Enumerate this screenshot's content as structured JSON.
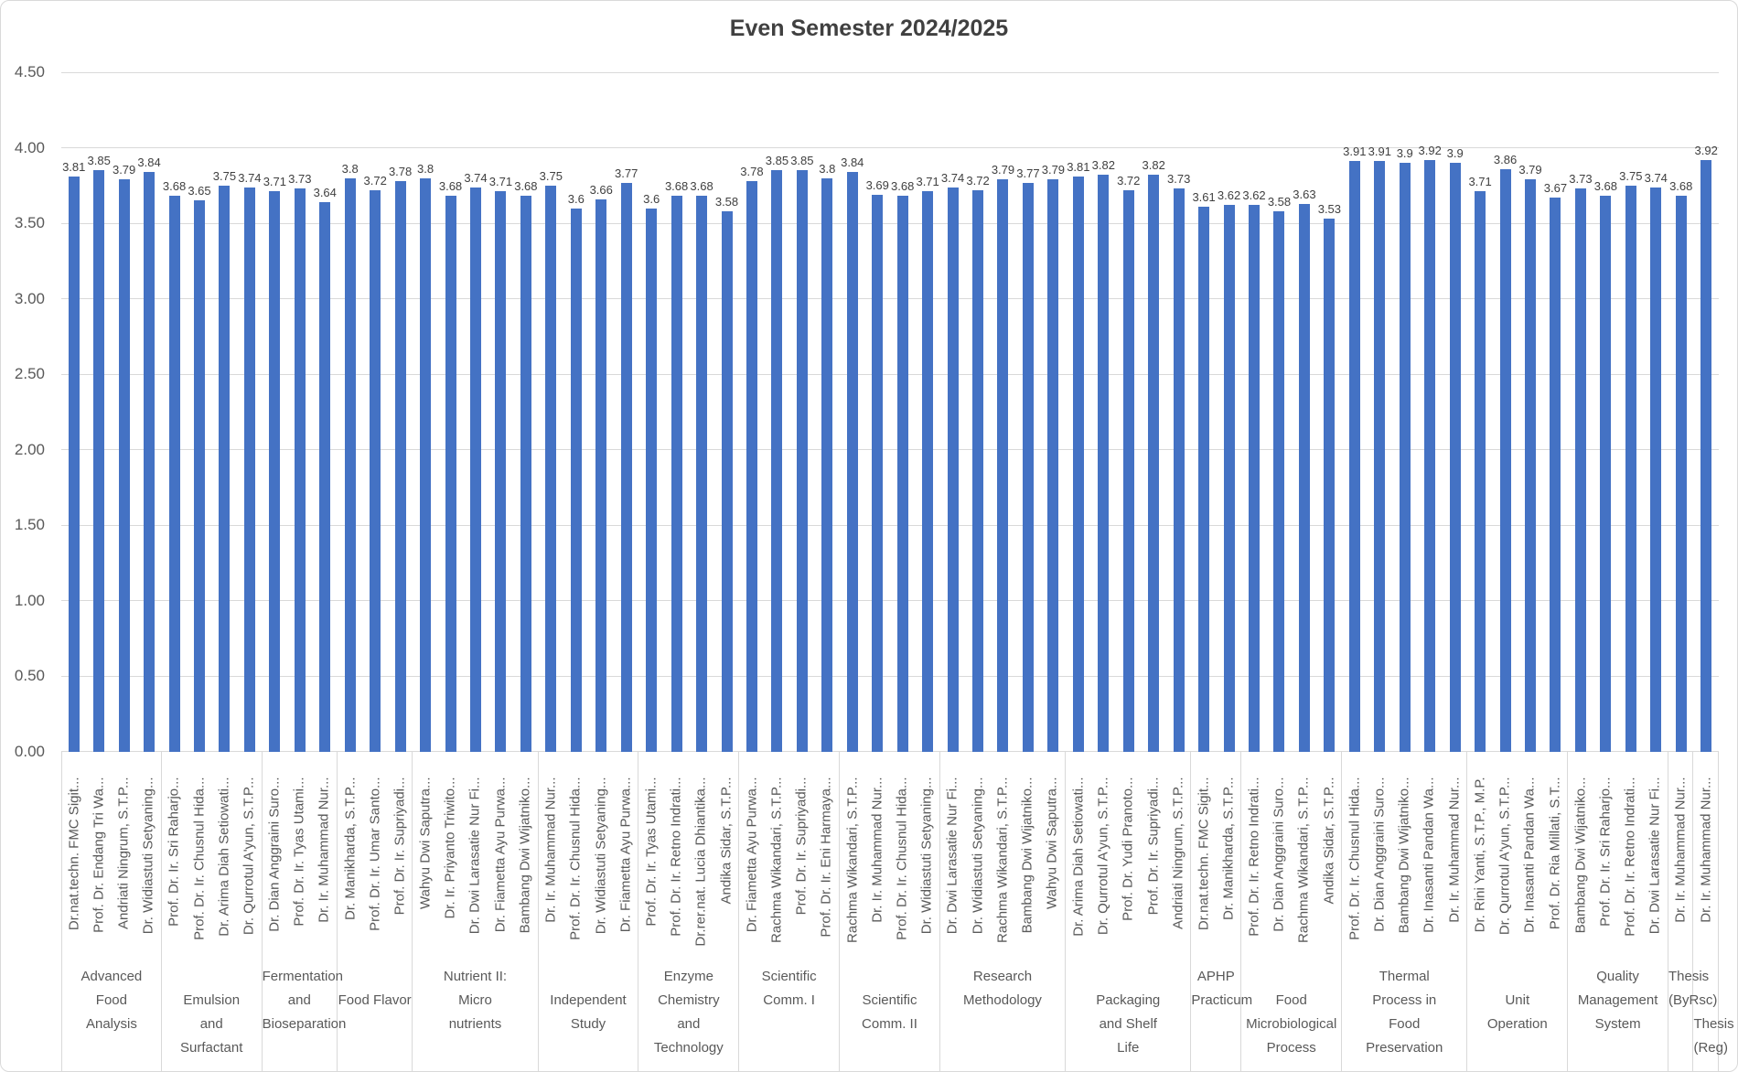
{
  "chart_data": {
    "type": "bar",
    "title": "Even Semester 2024/2025",
    "bar_color": "#4472C4",
    "grid_color": "#D9D9D9",
    "axis_text_color": "#595959",
    "value_label_color": "#404040",
    "ylim": [
      0,
      4.5
    ],
    "ytick_step": 0.5,
    "yticks": [
      "4.50",
      "4.00",
      "3.50",
      "3.00",
      "2.50",
      "2.00",
      "1.50",
      "1.00",
      "0.50",
      "0.00"
    ],
    "legend": "none",
    "grid": "horizontal",
    "xlabel": "",
    "ylabel": "",
    "groups": [
      {
        "course": "Advanced Food Analysis",
        "course_lines": [
          "Advanced",
          "Food",
          "Analysis"
        ],
        "row": 1,
        "bars": [
          {
            "lecturer": "Dr.nat.techn. FMC Sigit...",
            "value": 3.81,
            "label": "3.81"
          },
          {
            "lecturer": "Prof. Dr. Endang Tri Wa...",
            "value": 3.85,
            "label": "3.85"
          },
          {
            "lecturer": "Andriati Ningrum, S.T.P...",
            "value": 3.79,
            "label": "3.79"
          },
          {
            "lecturer": "Dr. Widiastuti Setyaning...",
            "value": 3.84,
            "label": "3.84"
          }
        ]
      },
      {
        "course": "Emulsion and Surfactant",
        "course_lines": [
          "Emulsion",
          "and",
          "Surfactant"
        ],
        "row": 2,
        "bars": [
          {
            "lecturer": "Prof. Dr. Ir. Sri Raharjo...",
            "value": 3.68,
            "label": "3.68"
          },
          {
            "lecturer": "Prof. Dr. Ir. Chusnul Hida...",
            "value": 3.65,
            "label": "3.65"
          },
          {
            "lecturer": "Dr. Arima Diah Setiowati...",
            "value": 3.75,
            "label": "3.75"
          },
          {
            "lecturer": "Dr. Qurrotul A'yun, S.T.P...",
            "value": 3.74,
            "label": "3.74"
          }
        ]
      },
      {
        "course": "Fermentation and Bioseparation",
        "course_lines": [
          "Fermentation",
          "and",
          "Bioseparation"
        ],
        "row": 1,
        "bars": [
          {
            "lecturer": "Dr. Dian Anggraini Suro...",
            "value": 3.71,
            "label": "3.71"
          },
          {
            "lecturer": "Prof. Dr. Ir. Tyas Utami...",
            "value": 3.73,
            "label": "3.73"
          },
          {
            "lecturer": "Dr. Ir. Muhammad Nur...",
            "value": 3.64,
            "label": "3.64"
          }
        ]
      },
      {
        "course": "Food Flavor",
        "course_lines": [
          "Food Flavor"
        ],
        "row": 2,
        "bars": [
          {
            "lecturer": "Dr. Manikharda, S.T.P...",
            "value": 3.8,
            "label": "3.8"
          },
          {
            "lecturer": "Prof. Dr. Ir. Umar Santo...",
            "value": 3.72,
            "label": "3.72"
          },
          {
            "lecturer": "Prof. Dr. Ir. Supriyadi...",
            "value": 3.78,
            "label": "3.78"
          }
        ]
      },
      {
        "course": "Nutrient II: Micro nutrients",
        "course_lines": [
          "Nutrient II:",
          "Micro",
          "nutrients"
        ],
        "row": 1,
        "bars": [
          {
            "lecturer": "Wahyu Dwi Saputra...",
            "value": 3.8,
            "label": "3.8"
          },
          {
            "lecturer": "Dr. Ir. Priyanto Triwito...",
            "value": 3.68,
            "label": "3.68"
          },
          {
            "lecturer": "Dr. Dwi Larasatie Nur Fi...",
            "value": 3.74,
            "label": "3.74"
          },
          {
            "lecturer": "Dr. Fiametta Ayu Purwa...",
            "value": 3.71,
            "label": "3.71"
          },
          {
            "lecturer": "Bambang Dwi Wijatniko...",
            "value": 3.68,
            "label": "3.68"
          }
        ]
      },
      {
        "course": "Independent Study",
        "course_lines": [
          "Independent",
          "Study"
        ],
        "row": 2,
        "bars": [
          {
            "lecturer": "Dr. Ir. Muhammad Nur...",
            "value": 3.75,
            "label": "3.75"
          },
          {
            "lecturer": "Prof. Dr. Ir. Chusnul Hida...",
            "value": 3.6,
            "label": "3.6"
          },
          {
            "lecturer": "Dr. Widiastuti Setyaning...",
            "value": 3.66,
            "label": "3.66"
          },
          {
            "lecturer": "Dr. Fiametta Ayu Purwa...",
            "value": 3.77,
            "label": "3.77"
          }
        ]
      },
      {
        "course": "Enzyme Chemistry and Technology",
        "course_lines": [
          "Enzyme",
          "Chemistry",
          "and",
          "Technology"
        ],
        "row": 1,
        "bars": [
          {
            "lecturer": "Prof. Dr. Ir. Tyas Utami...",
            "value": 3.6,
            "label": "3.6"
          },
          {
            "lecturer": "Prof. Dr. Ir. Retno Indrati...",
            "value": 3.68,
            "label": "3.68"
          },
          {
            "lecturer": "Dr.rer.nat. Lucia Dhiantika...",
            "value": 3.68,
            "label": "3.68"
          },
          {
            "lecturer": "Andika Sidar, S.T.P...",
            "value": 3.58,
            "label": "3.58"
          }
        ]
      },
      {
        "course": "Scientific Comm. I",
        "course_lines": [
          "Scientific",
          "Comm. I"
        ],
        "row": 1,
        "bars": [
          {
            "lecturer": "Dr. Fiametta Ayu Purwa...",
            "value": 3.78,
            "label": "3.78"
          },
          {
            "lecturer": "Rachma Wikandari, S.T.P...",
            "value": 3.85,
            "label": "3.85"
          },
          {
            "lecturer": "Prof. Dr. Ir. Supriyadi...",
            "value": 3.85,
            "label": "3.85"
          },
          {
            "lecturer": "Prof. Dr. Ir. Eni Harmaya...",
            "value": 3.8,
            "label": "3.8"
          }
        ]
      },
      {
        "course": "Scientific Comm. II",
        "course_lines": [
          "Scientific",
          "Comm. II"
        ],
        "row": 2,
        "bars": [
          {
            "lecturer": "Rachma Wikandari, S.T.P...",
            "value": 3.84,
            "label": "3.84"
          },
          {
            "lecturer": "Dr. Ir. Muhammad Nur...",
            "value": 3.69,
            "label": "3.69"
          },
          {
            "lecturer": "Prof. Dr. Ir. Chusnul Hida...",
            "value": 3.68,
            "label": "3.68"
          },
          {
            "lecturer": "Dr. Widiastuti Setyaning...",
            "value": 3.71,
            "label": "3.71"
          }
        ]
      },
      {
        "course": "Research Methodology",
        "course_lines": [
          "Research",
          "Methodology"
        ],
        "row": 1,
        "bars": [
          {
            "lecturer": "Dr. Dwi Larasatie Nur Fi...",
            "value": 3.74,
            "label": "3.74"
          },
          {
            "lecturer": "Dr. Widiastuti Setyaning...",
            "value": 3.72,
            "label": "3.72"
          },
          {
            "lecturer": "Rachma Wikandari, S.T.P...",
            "value": 3.79,
            "label": "3.79"
          },
          {
            "lecturer": "Bambang Dwi Wijatniko...",
            "value": 3.77,
            "label": "3.77"
          },
          {
            "lecturer": "Wahyu Dwi Saputra...",
            "value": 3.79,
            "label": "3.79"
          }
        ]
      },
      {
        "course": "Packaging and Shelf Life",
        "course_lines": [
          "Packaging",
          "and Shelf",
          "Life"
        ],
        "row": 2,
        "bars": [
          {
            "lecturer": "Dr. Arima Diah Setiowati...",
            "value": 3.81,
            "label": "3.81"
          },
          {
            "lecturer": "Dr. Qurrotul A'yun, S.T.P...",
            "value": 3.82,
            "label": "3.82"
          },
          {
            "lecturer": "Prof. Dr. Yudi Pranoto...",
            "value": 3.72,
            "label": "3.72"
          },
          {
            "lecturer": "Prof. Dr. Ir. Supriyadi...",
            "value": 3.82,
            "label": "3.82"
          },
          {
            "lecturer": "Andriati Ningrum, S.T.P...",
            "value": 3.73,
            "label": "3.73"
          }
        ]
      },
      {
        "course": "APHP Practicum",
        "course_lines": [
          "APHP",
          "Practicum"
        ],
        "row": 1,
        "bars": [
          {
            "lecturer": "Dr.nat.techn. FMC Sigit...",
            "value": 3.61,
            "label": "3.61"
          },
          {
            "lecturer": "Dr. Manikharda, S.T.P...",
            "value": 3.62,
            "label": "3.62"
          }
        ]
      },
      {
        "course": "Food Microbiological Process",
        "course_lines": [
          "Food",
          "Microbiological",
          "Process"
        ],
        "row": 2,
        "bars": [
          {
            "lecturer": "Prof. Dr. Ir. Retno Indrati...",
            "value": 3.62,
            "label": "3.62"
          },
          {
            "lecturer": "Dr. Dian Anggraini Suro...",
            "value": 3.58,
            "label": "3.58"
          },
          {
            "lecturer": "Rachma Wikandari, S.T.P...",
            "value": 3.63,
            "label": "3.63"
          },
          {
            "lecturer": "Andika Sidar, S.T.P...",
            "value": 3.53,
            "label": "3.53"
          }
        ]
      },
      {
        "course": "Thermal Process in Food Preservation",
        "course_lines": [
          "Thermal",
          "Process in",
          "Food",
          "Preservation"
        ],
        "row": 1,
        "bars": [
          {
            "lecturer": "Prof. Dr. Ir. Chusnul Hida...",
            "value": 3.91,
            "label": "3.91"
          },
          {
            "lecturer": "Dr. Dian Anggraini Suro...",
            "value": 3.91,
            "label": "3.91"
          },
          {
            "lecturer": "Bambang Dwi Wijatniko...",
            "value": 3.9,
            "label": "3.9"
          },
          {
            "lecturer": "Dr. Inasanti Pandan Wa...",
            "value": 3.92,
            "label": "3.92"
          },
          {
            "lecturer": "Dr. Ir. Muhammad Nur...",
            "value": 3.9,
            "label": "3.9"
          }
        ]
      },
      {
        "course": "Unit Operation",
        "course_lines": [
          "Unit",
          "Operation"
        ],
        "row": 2,
        "bars": [
          {
            "lecturer": "Dr. Rini Yanti, S.T.P., M.P.",
            "value": 3.71,
            "label": "3.71"
          },
          {
            "lecturer": "Dr. Qurrotul A'yun, S.T.P...",
            "value": 3.86,
            "label": "3.86"
          },
          {
            "lecturer": "Dr. Inasanti Pandan Wa...",
            "value": 3.79,
            "label": "3.79"
          },
          {
            "lecturer": "Prof. Dr. Ria Millati, S.T...",
            "value": 3.67,
            "label": "3.67"
          }
        ]
      },
      {
        "course": "Quality Management System",
        "course_lines": [
          "Quality",
          "Management",
          "System"
        ],
        "row": 1,
        "bars": [
          {
            "lecturer": "Bambang Dwi Wijatniko...",
            "value": 3.73,
            "label": "3.73"
          },
          {
            "lecturer": "Prof. Dr. Ir. Sri Raharjo...",
            "value": 3.68,
            "label": "3.68"
          },
          {
            "lecturer": "Prof. Dr. Ir. Retno Indrati...",
            "value": 3.75,
            "label": "3.75"
          },
          {
            "lecturer": "Dr. Dwi Larasatie Nur Fi...",
            "value": 3.74,
            "label": "3.74"
          }
        ]
      },
      {
        "course": "Thesis (ByRsc)",
        "course_lines": [
          "Thesis",
          "(ByRsc)"
        ],
        "row": 1,
        "bars": [
          {
            "lecturer": "Dr. Ir. Muhammad Nur...",
            "value": 3.68,
            "label": "3.68"
          }
        ]
      },
      {
        "course": "Thesis (Reg)",
        "course_lines": [
          "Thesis",
          "(Reg)"
        ],
        "row": 3,
        "bars": [
          {
            "lecturer": "Dr. Ir. Muhammad Nur...",
            "value": 3.92,
            "label": "3.92"
          }
        ]
      }
    ]
  }
}
